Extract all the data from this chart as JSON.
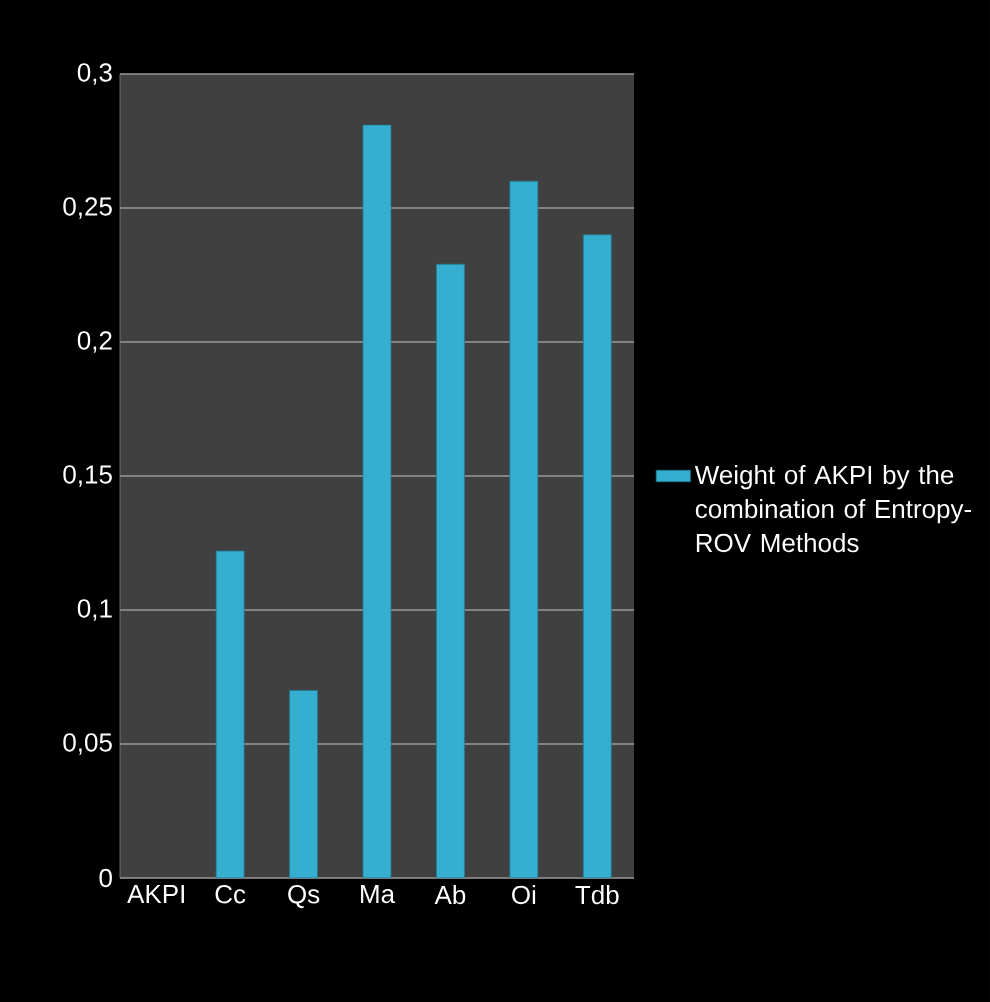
{
  "chart_data": {
    "type": "bar",
    "categories": [
      "AKPI",
      "Cc",
      "Qs",
      "Ma",
      "Ab",
      "Oi",
      "Tdb"
    ],
    "series": [
      {
        "name": "Weight of AKPI by the combination of Entropy-ROV Methods",
        "color": "#35aed0",
        "values": [
          null,
          0.122,
          0.07,
          0.281,
          0.229,
          0.26,
          0.24
        ]
      }
    ],
    "ylim": [
      0,
      0.3
    ],
    "yticks": [
      {
        "value": 0,
        "label": "0"
      },
      {
        "value": 0.05,
        "label": "0,05"
      },
      {
        "value": 0.1,
        "label": "0,1"
      },
      {
        "value": 0.15,
        "label": "0,15"
      },
      {
        "value": 0.2,
        "label": "0,2"
      },
      {
        "value": 0.25,
        "label": "0,25"
      },
      {
        "value": 0.3,
        "label": "0,3"
      }
    ],
    "grid": "y",
    "legend": "right"
  }
}
